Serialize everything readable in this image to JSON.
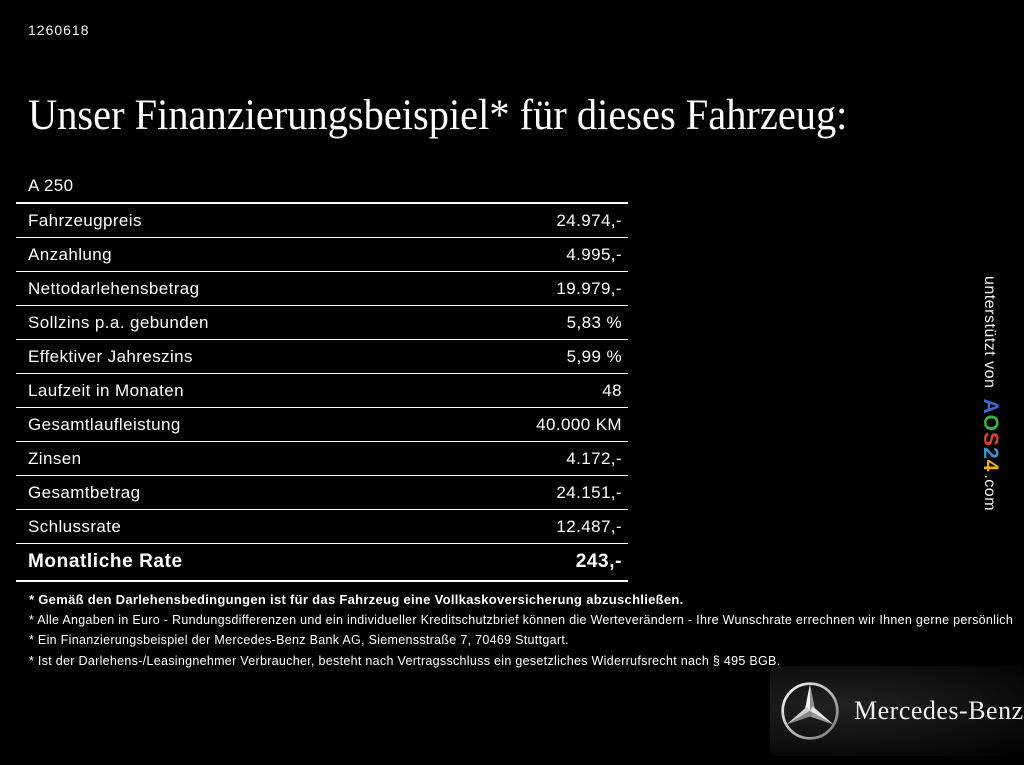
{
  "header": {
    "doc_number": "1260618",
    "title": "Unser Finanzierungsbeispiel* für dieses Fahrzeug:"
  },
  "table": {
    "model": "A 250",
    "rows": [
      {
        "label": "Fahrzeugpreis",
        "value": "24.974,-"
      },
      {
        "label": "Anzahlung",
        "value": "4.995,-"
      },
      {
        "label": "Nettodarlehensbetrag",
        "value": "19.979,-"
      },
      {
        "label": "Sollzins p.a. gebunden",
        "value": "5,83 %"
      },
      {
        "label": "Effektiver Jahreszins",
        "value": "5,99 %"
      },
      {
        "label": "Laufzeit in Monaten",
        "value": "48"
      },
      {
        "label": "Gesamtlaufleistung",
        "value": "40.000 KM"
      },
      {
        "label": "Zinsen",
        "value": "4.172,-"
      },
      {
        "label": "Gesamtbetrag",
        "value": "24.151,-"
      },
      {
        "label": "Schlussrate",
        "value": "12.487,-"
      }
    ],
    "highlight": {
      "label": "Monatliche Rate",
      "value": "243,-"
    }
  },
  "footnotes": [
    {
      "text": "* Gemäß den Darlehensbedingungen ist für das Fahrzeug eine Vollkaskoversicherung abzuschließen.",
      "bold": true
    },
    {
      "text": "* Alle Angaben in Euro - Rundungsdifferenzen und ein individueller Kreditschutzbrief können die Werteverändern - Ihre Wunschrate errechnen wir Ihnen gerne persönlich",
      "bold": false
    },
    {
      "text": "* Ein Finanzierungsbeispiel der Mercedes-Benz Bank AG, Siemensstraße 7, 70469 Stuttgart.",
      "bold": false
    },
    {
      "text": "* Ist der Darlehens-/Leasingnehmer Verbraucher, besteht nach Vertragsschluss ein gesetzliches Widerrufsrecht nach § 495 BGB.",
      "bold": false
    }
  ],
  "sidebar": {
    "prefix": "unterstützt von",
    "brand_letters": [
      {
        "char": "A",
        "color": "#3f6ad1"
      },
      {
        "char": "O",
        "color": "#3fae3f"
      },
      {
        "char": "S",
        "color": "#e0402e"
      },
      {
        "char": "2",
        "color": "#3596cf"
      },
      {
        "char": "4",
        "color": "#ecaa1e"
      }
    ],
    "suffix": ".com"
  },
  "logo": {
    "brand": "Mercedes-Benz"
  },
  "colors": {
    "background": "#000000",
    "text": "#ffffff",
    "rule": "#ffffff",
    "star_light": "#f2f2f2",
    "star_dark": "#8f8f8f"
  }
}
